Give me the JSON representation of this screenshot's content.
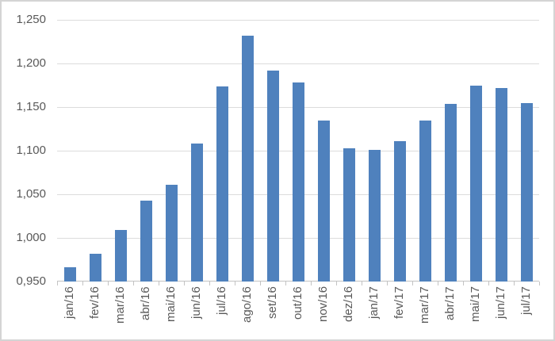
{
  "chart_data": {
    "type": "bar",
    "title": "",
    "xlabel": "",
    "ylabel": "",
    "categories": [
      "jan/16",
      "fev/16",
      "mar/16",
      "abr/16",
      "mai/16",
      "jun/16",
      "jul/16",
      "ago/16",
      "set/16",
      "out/16",
      "nov/16",
      "dez/16",
      "jan/17",
      "fev/17",
      "mar/17",
      "abr/17",
      "mai/17",
      "jun/17",
      "jul/17"
    ],
    "values": [
      0.966,
      0.982,
      1.009,
      1.043,
      1.061,
      1.108,
      1.174,
      1.232,
      1.192,
      1.178,
      1.135,
      1.103,
      1.101,
      1.111,
      1.135,
      1.154,
      1.175,
      1.172,
      1.155
    ],
    "ylim": [
      0.95,
      1.25
    ],
    "ytick_interval": 0.05,
    "ytick_labels": [
      "0,950",
      "1,000",
      "1,050",
      "1,100",
      "1,150",
      "1,200",
      "1,250"
    ],
    "grid": true,
    "legend": false,
    "colors": {
      "bar": "#4F81BD",
      "gridline": "#dcdcdc",
      "axis_line": "#c3c3c3",
      "tick": "#c3c3c3",
      "label_text": "#595959",
      "background": "#ffffff",
      "frame_border": "#d4d4d4"
    }
  }
}
